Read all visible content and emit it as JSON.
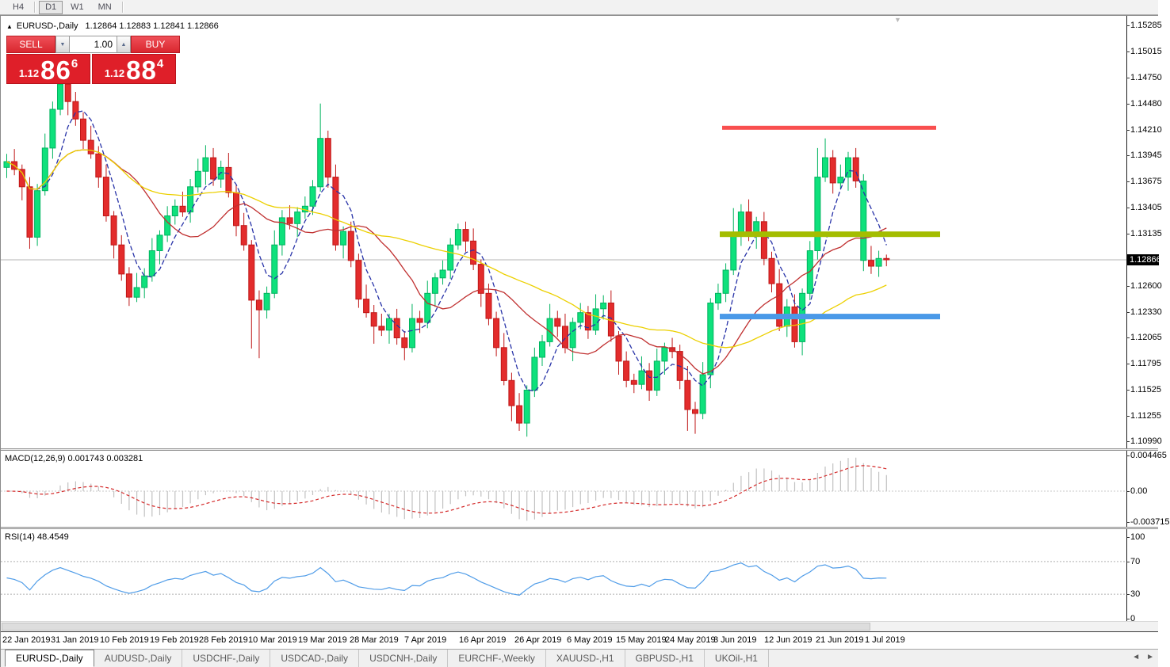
{
  "toolbar": {
    "timeframes": [
      {
        "label": "H4",
        "active": false
      },
      {
        "label": "D1",
        "active": true
      },
      {
        "label": "W1",
        "active": false
      },
      {
        "label": "MN",
        "active": false
      }
    ],
    "separators_after": [
      0,
      3
    ]
  },
  "chart_header": {
    "collapse_icon": "▲",
    "symbol_title": "EURUSD-,Daily",
    "ohlc": "1.12864 1.12883 1.12841 1.12866"
  },
  "trade_panel": {
    "sell_label": "SELL",
    "buy_label": "BUY",
    "volume": "1.00",
    "spinner_down_icon": "▼",
    "spinner_up_icon": "▲",
    "sell_price": {
      "small": "1.12",
      "big": "86",
      "sup": "6"
    },
    "buy_price": {
      "small": "1.12",
      "big": "88",
      "sup": "4"
    }
  },
  "price_axis": {
    "current": "1.12866",
    "current_value": 1.12866,
    "ticks": [
      {
        "v": 1.15285,
        "t": "1.15285"
      },
      {
        "v": 1.15015,
        "t": "1.15015"
      },
      {
        "v": 1.1475,
        "t": "1.14750"
      },
      {
        "v": 1.1448,
        "t": "1.14480"
      },
      {
        "v": 1.1421,
        "t": "1.14210"
      },
      {
        "v": 1.13945,
        "t": "1.13945"
      },
      {
        "v": 1.13675,
        "t": "1.13675"
      },
      {
        "v": 1.13405,
        "t": "1.13405"
      },
      {
        "v": 1.13135,
        "t": "1.13135"
      },
      {
        "v": 1.126,
        "t": "1.12600"
      },
      {
        "v": 1.1233,
        "t": "1.12330"
      },
      {
        "v": 1.12065,
        "t": "1.12065"
      },
      {
        "v": 1.11795,
        "t": "1.11795"
      },
      {
        "v": 1.11525,
        "t": "1.11525"
      },
      {
        "v": 1.11255,
        "t": "1.11255"
      },
      {
        "v": 1.1099,
        "t": "1.10990"
      }
    ]
  },
  "chart_data": {
    "type": "candlestick",
    "symbol": "EURUSD-",
    "timeframe": "Daily",
    "title": "EURUSD-,Daily  1.12864 1.12883 1.12841 1.12866",
    "ylim": [
      1.1092,
      1.1533
    ],
    "current_price": 1.12866,
    "first_open": 1.1382,
    "closes": [
      1.1388,
      1.138,
      1.1362,
      1.131,
      1.1358,
      1.1402,
      1.1442,
      1.1468,
      1.145,
      1.1432,
      1.141,
      1.1396,
      1.1372,
      1.1332,
      1.1302,
      1.1272,
      1.1248,
      1.1258,
      1.127,
      1.1296,
      1.1312,
      1.1332,
      1.1342,
      1.1336,
      1.1362,
      1.1378,
      1.1392,
      1.137,
      1.1382,
      1.1356,
      1.1322,
      1.1302,
      1.1245,
      1.1235,
      1.1252,
      1.1302,
      1.133,
      1.1324,
      1.1336,
      1.1342,
      1.1362,
      1.1412,
      1.1372,
      1.1302,
      1.1316,
      1.1286,
      1.1246,
      1.1232,
      1.1218,
      1.1214,
      1.1226,
      1.1206,
      1.1196,
      1.1226,
      1.1222,
      1.1252,
      1.1268,
      1.1276,
      1.1302,
      1.1318,
      1.1306,
      1.1282,
      1.1252,
      1.1226,
      1.1196,
      1.1162,
      1.1136,
      1.1118,
      1.1152,
      1.1186,
      1.1202,
      1.1226,
      1.1218,
      1.1196,
      1.1222,
      1.1232,
      1.1214,
      1.1236,
      1.1242,
      1.1208,
      1.1182,
      1.1162,
      1.1158,
      1.1172,
      1.1152,
      1.1182,
      1.1196,
      1.1192,
      1.1162,
      1.1132,
      1.1128,
      1.1168,
      1.1242,
      1.1252,
      1.1276,
      1.1312,
      1.1336,
      1.1312,
      1.1326,
      1.1288,
      1.1262,
      1.1218,
      1.1238,
      1.1202,
      1.1252,
      1.1296,
      1.1372,
      1.1392,
      1.1366,
      1.1372,
      1.1392,
      1.1368,
      1.1286,
      1.128,
      1.1288,
      1.12866
    ],
    "wick_up_cycle": [
      0.0008,
      0.0013,
      0.0005,
      0.001,
      0.0007,
      0.0015
    ],
    "wick_dn_cycle": [
      0.0011,
      0.0006,
      0.0014,
      0.0007,
      0.0009,
      0.0005
    ],
    "overrides": {
      "high": {
        "7": 1.1474,
        "8": 1.1471,
        "26": 1.1405,
        "41": 1.1448,
        "59": 1.1324,
        "95": 1.134,
        "106": 1.1402,
        "107": 1.1412,
        "110": 1.1398,
        "115": 1.1292
      },
      "low": {
        "3": 1.1298,
        "32": 1.1195,
        "33": 1.1185,
        "48": 1.12,
        "52": 1.1183,
        "66": 1.112,
        "67": 1.111,
        "80": 1.1168,
        "89": 1.111,
        "90": 1.1107,
        "112": 1.1275,
        "113": 1.1272,
        "115": 1.128
      },
      "color": {
        "112": "up"
      }
    },
    "moving_averages": [
      {
        "period": 5,
        "color": "#2833a8",
        "style": "dashed",
        "name": "ma-fast-blue"
      },
      {
        "period": 13,
        "color": "#c03030",
        "style": "solid",
        "name": "ma-mid-red"
      },
      {
        "period": 34,
        "color": "#ecd000",
        "style": "solid",
        "name": "ma-slow-yellow"
      }
    ],
    "levels": [
      {
        "name": "resistance-line-red",
        "price": 1.1423,
        "x1": 910,
        "x2": 1180,
        "thickness": 5,
        "color": "#f94f4f"
      },
      {
        "name": "mid-line-olive",
        "price": 1.1313,
        "x1": 907,
        "x2": 1185,
        "thickness": 7,
        "color": "#a4bd00"
      },
      {
        "name": "support-line-blue",
        "price": 1.1228,
        "x1": 907,
        "x2": 1185,
        "thickness": 7,
        "color": "#4a99e8"
      }
    ]
  },
  "indicators": {
    "macd": {
      "label": "MACD(12,26,9) 0.001743 0.003281",
      "params": [
        12,
        26,
        9
      ],
      "value": 0.001743,
      "signal_value": 0.003281,
      "axis": [
        {
          "v": 0.004465,
          "t": "0.004465"
        },
        {
          "v": 0.0,
          "t": "0.00"
        },
        {
          "v": -0.003715,
          "t": "-0.003715"
        }
      ]
    },
    "rsi": {
      "label": "RSI(14) 48.4549",
      "period": 14,
      "value": 48.4549,
      "levels": [
        70,
        30
      ],
      "axis": [
        {
          "v": 100,
          "t": "100"
        },
        {
          "v": 70,
          "t": "70"
        },
        {
          "v": 30,
          "t": "30"
        },
        {
          "v": 0,
          "t": "0"
        }
      ]
    }
  },
  "x_axis": {
    "labels": [
      {
        "text": "22 Jan 2019",
        "x": 2
      },
      {
        "text": "31 Jan 2019",
        "x": 63
      },
      {
        "text": "10 Feb 2019",
        "x": 125
      },
      {
        "text": "19 Feb 2019",
        "x": 188
      },
      {
        "text": "28 Feb 2019",
        "x": 250
      },
      {
        "text": "10 Mar 2019",
        "x": 312
      },
      {
        "text": "19 Mar 2019",
        "x": 375
      },
      {
        "text": "28 Mar 2019",
        "x": 440
      },
      {
        "text": "7 Apr 2019",
        "x": 509
      },
      {
        "text": "16 Apr 2019",
        "x": 578
      },
      {
        "text": "26 Apr 2019",
        "x": 648
      },
      {
        "text": "6 May 2019",
        "x": 714
      },
      {
        "text": "15 May 2019",
        "x": 776
      },
      {
        "text": "24 May 2019",
        "x": 838
      },
      {
        "text": "3 Jun 2019",
        "x": 899
      },
      {
        "text": "12 Jun 2019",
        "x": 963
      },
      {
        "text": "21 Jun 2019",
        "x": 1028
      },
      {
        "text": "1 Jul 2019",
        "x": 1090
      }
    ]
  },
  "tabs": {
    "items": [
      {
        "label": "EURUSD-,Daily",
        "active": true
      },
      {
        "label": "AUDUSD-,Daily",
        "active": false
      },
      {
        "label": "USDCHF-,Daily",
        "active": false
      },
      {
        "label": "USDCAD-,Daily",
        "active": false
      },
      {
        "label": "USDCNH-,Daily",
        "active": false
      },
      {
        "label": "EURCHF-,Weekly",
        "active": false
      },
      {
        "label": "XAUUSD-,H1",
        "active": false
      },
      {
        "label": "GBPUSD-,H1",
        "active": false
      },
      {
        "label": "UKOil-,H1",
        "active": false
      }
    ],
    "scroll_left": "◄",
    "scroll_right": "►"
  },
  "icons": {
    "shift_marker": "▼"
  },
  "colors": {
    "bull": "#0ee17c",
    "bull_border": "#00b35f",
    "bear": "#e32c2c",
    "bear_border": "#bf1717",
    "macd_hist": "#c2c2c2",
    "macd_signal": "#d42a2a",
    "rsi_line": "#4f9ce8",
    "price_line": "#b4b4b4",
    "level_dash": "#b0b0b0"
  }
}
